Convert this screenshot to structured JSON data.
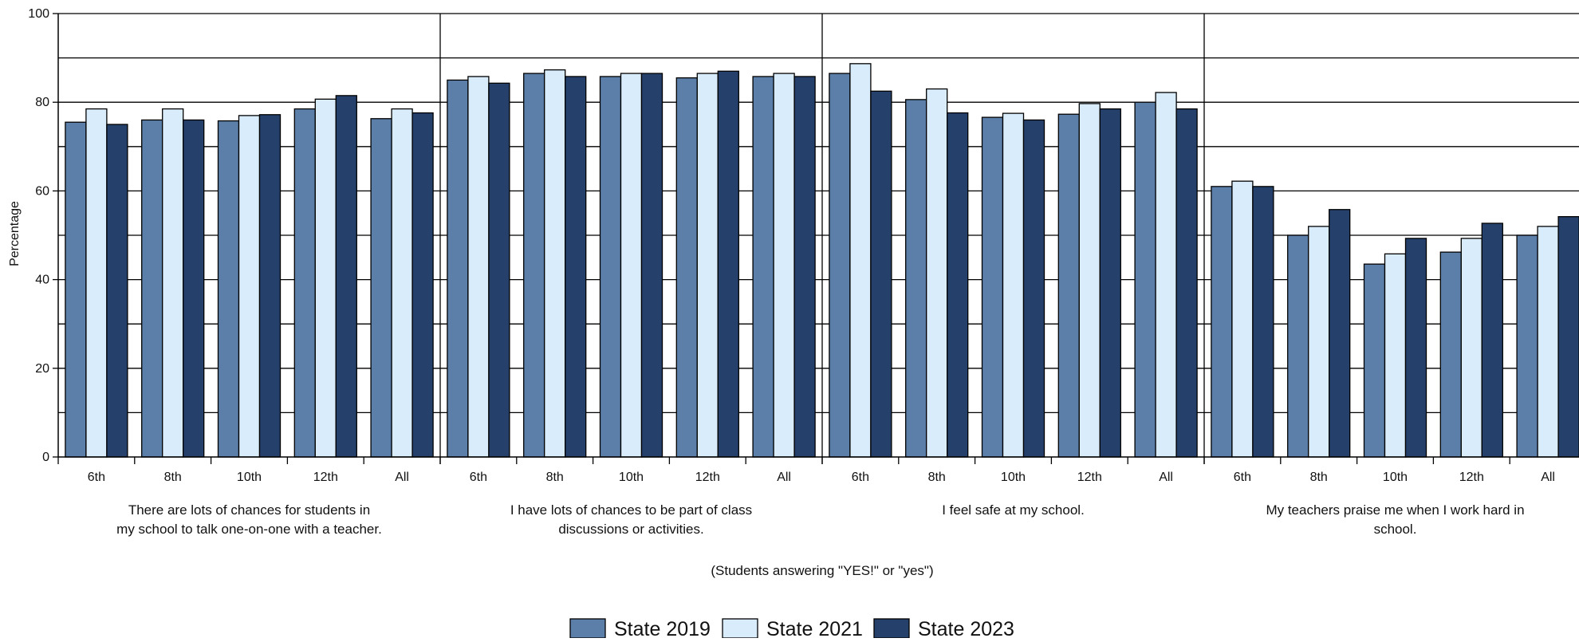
{
  "chart_data": {
    "type": "bar",
    "title": "",
    "ylabel": "Percentage",
    "ylim": [
      0,
      100
    ],
    "yticks": [
      0,
      20,
      40,
      60,
      80,
      100
    ],
    "grid": true,
    "note": "(Students answering \"YES!\" or \"yes\")",
    "legend_position": "bottom-center",
    "subcategories": [
      "6th",
      "8th",
      "10th",
      "12th",
      "All"
    ],
    "series": [
      {
        "name": "State 2019",
        "color": "#5b7fa8"
      },
      {
        "name": "State 2021",
        "color": "#d9ecfb"
      },
      {
        "name": "State 2023",
        "color": "#25406a"
      }
    ],
    "groups": [
      {
        "label_lines": [
          "There are lots of chances for students in",
          "my school to talk one-on-one with a teacher."
        ],
        "values": [
          [
            75.5,
            78.5,
            75
          ],
          [
            76,
            78.5,
            76
          ],
          [
            75.8,
            77,
            77.2
          ],
          [
            78.5,
            80.7,
            81.5
          ],
          [
            76.3,
            78.5,
            77.6
          ]
        ]
      },
      {
        "label_lines": [
          "I have lots of chances to be part of class",
          "discussions or activities."
        ],
        "values": [
          [
            85,
            85.8,
            84.3
          ],
          [
            86.5,
            87.3,
            85.8
          ],
          [
            85.8,
            86.5,
            86.5
          ],
          [
            85.5,
            86.5,
            87
          ],
          [
            85.8,
            86.5,
            85.8
          ]
        ]
      },
      {
        "label_lines": [
          "I feel safe at my school."
        ],
        "values": [
          [
            86.5,
            88.7,
            82.5
          ],
          [
            80.6,
            83,
            77.6
          ],
          [
            76.6,
            77.5,
            76
          ],
          [
            77.3,
            79.7,
            78.5
          ],
          [
            80,
            82.2,
            78.5
          ]
        ]
      },
      {
        "label_lines": [
          "My teachers praise me when I work hard in",
          "school."
        ],
        "values": [
          [
            61,
            62.2,
            61
          ],
          [
            50,
            52,
            55.8
          ],
          [
            43.5,
            45.8,
            49.3
          ],
          [
            46.2,
            49.3,
            52.7
          ],
          [
            50,
            52,
            54.2
          ]
        ]
      }
    ]
  }
}
